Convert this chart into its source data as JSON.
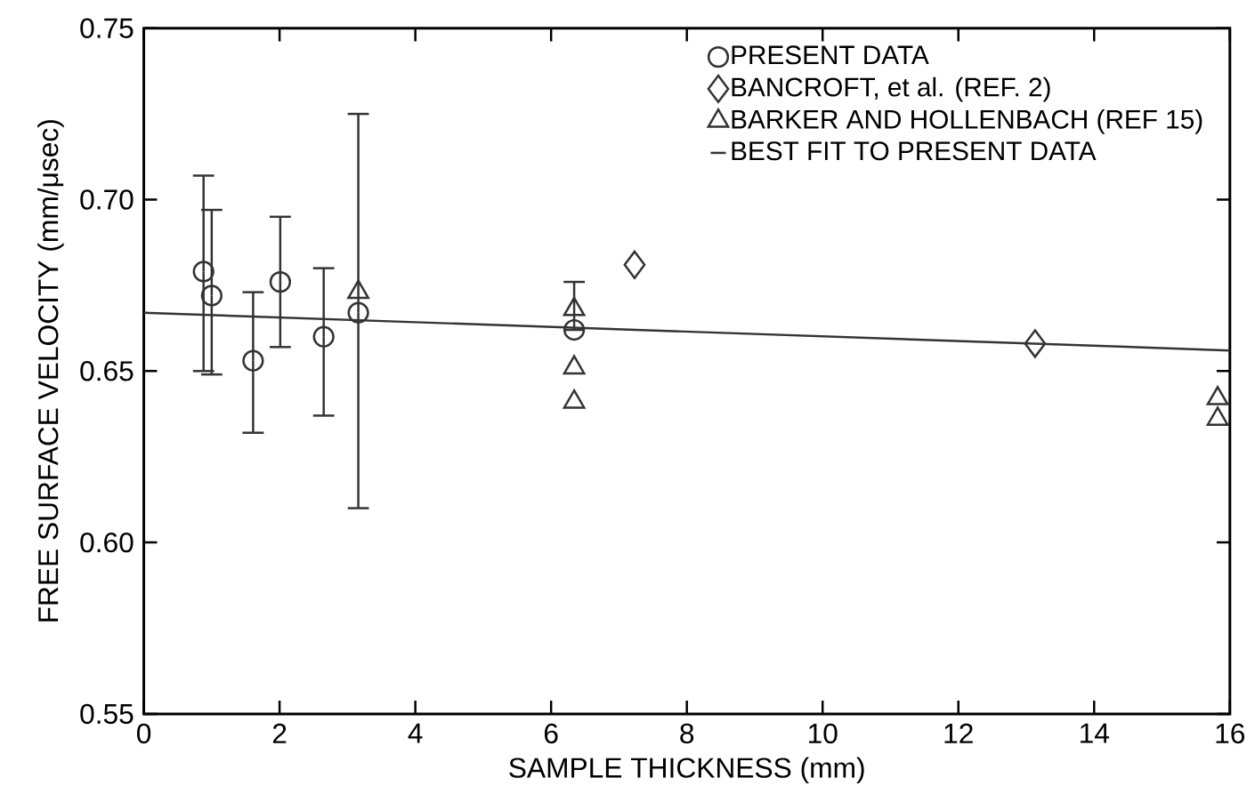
{
  "chart_data": {
    "type": "scatter",
    "xlabel": "SAMPLE THICKNESS (mm)",
    "ylabel": "FREE SURFACE VELOCITY (mm/μsec)",
    "xlim": [
      0,
      16
    ],
    "ylim": [
      0.55,
      0.75
    ],
    "xticks": [
      0,
      2,
      4,
      6,
      8,
      10,
      12,
      14,
      16
    ],
    "yticks": [
      {
        "value": 0.55,
        "label": "0.55"
      },
      {
        "value": 0.6,
        "label": "0.60"
      },
      {
        "value": 0.65,
        "label": "0.65"
      },
      {
        "value": 0.7,
        "label": "0.70"
      },
      {
        "value": 0.75,
        "label": "0.75"
      }
    ],
    "grid": false,
    "legend": "top right",
    "series": [
      {
        "name": "PRESENT DATA",
        "marker": "circle",
        "color": "#333333",
        "x": [
          0.88,
          1.0,
          1.61,
          2.01,
          2.65,
          3.16,
          6.34
        ],
        "values": [
          0.679,
          0.672,
          0.653,
          0.676,
          0.66,
          0.667,
          0.662
        ],
        "errors": [
          [
            0.65,
            0.707
          ],
          [
            0.649,
            0.697
          ],
          [
            0.632,
            0.673
          ],
          [
            0.657,
            0.695
          ],
          [
            0.637,
            0.68
          ],
          [
            0.61,
            0.725
          ],
          [
            0.662,
            0.676
          ]
        ]
      },
      {
        "name": "BANCROFT, et al. (REF. 2)",
        "marker": "diamond",
        "color": "#333333",
        "x": [
          7.23,
          13.13
        ],
        "values": [
          0.681,
          0.658
        ]
      },
      {
        "name": "BARKER AND HOLLENBACH (REF 15)",
        "marker": "triangle",
        "color": "#333333",
        "x": [
          3.16,
          6.34,
          6.34,
          6.34,
          15.82,
          15.82
        ],
        "values": [
          0.673,
          0.668,
          0.651,
          0.641,
          0.642,
          0.636
        ]
      },
      {
        "name": "BEST FIT TO PRESENT DATA",
        "type": "line",
        "marker": "none",
        "line_style": "solid",
        "color": "#333333",
        "x": [
          0,
          16
        ],
        "values": [
          0.667,
          0.656
        ]
      }
    ]
  }
}
